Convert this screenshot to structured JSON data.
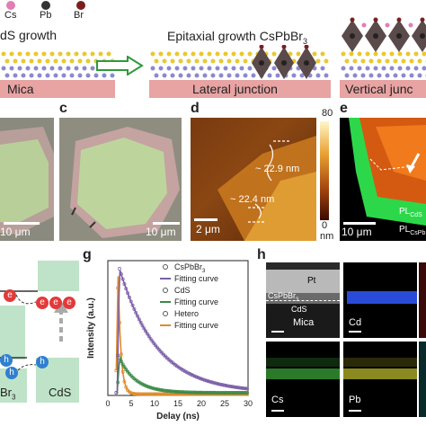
{
  "legend_atoms": {
    "cs": "Cs",
    "pb": "Pb",
    "br": "Br"
  },
  "top": {
    "cds_growth": "dS growth",
    "epitaxial": "Epitaxial growth CsPbBr",
    "epitaxial_sub": "3",
    "mica": "Mica",
    "lateral": "Lateral junction",
    "vertical": "Vertical junc"
  },
  "panel_labels": {
    "c": "c",
    "d": "d",
    "e": "e",
    "g": "g",
    "h": "h"
  },
  "scale": {
    "b": "10 μm",
    "c": "10 μm",
    "d": "2 μm",
    "e": "10 μm"
  },
  "afm": {
    "h1": "~ 22.9 nm",
    "h2": "~ 22.4 nm",
    "cb_top": "80",
    "cb_bottom": "0",
    "cb_unit": "nm"
  },
  "pl": {
    "cds": "PL",
    "cds_sub": "CdS",
    "cspb": "PL",
    "cspb_sub": "CsPb"
  },
  "band": {
    "e": "e",
    "h": "h",
    "left": "Br",
    "left_sub": "3",
    "right": "CdS"
  },
  "eds": {
    "pt": "Pt",
    "cspbbr": "CsPbBr",
    "cspbbr_sub": "3",
    "cds": "CdS",
    "mica": "Mica",
    "cd": "Cd",
    "cs": "Cs",
    "pb": "Pb"
  },
  "colors": {
    "cs": "#e07fb5",
    "pb": "#333333",
    "br": "#7a1f1f",
    "mica": "#e8a3a3",
    "cds_green": "#6fc27a"
  },
  "chart_data": {
    "type": "scatter",
    "title": "",
    "xlabel": "Delay (ns)",
    "ylabel": "Intensity (a.u.)",
    "xlim": [
      0,
      30
    ],
    "xticks": [
      0,
      5,
      10,
      15,
      20,
      25,
      30
    ],
    "legend": [
      "CsPbBr3",
      "Fitting curve",
      "CdS",
      "Fitting curve",
      "Hetero",
      "Fitting curve"
    ],
    "legend_display": [
      {
        "t": "CsPbBr",
        "sub": "3"
      },
      {
        "t": "Fitting curve"
      },
      {
        "t": "CdS"
      },
      {
        "t": "Fitting curve"
      },
      {
        "t": "Hetero"
      },
      {
        "t": "Fitting curve"
      }
    ],
    "series": [
      {
        "name": "CsPbBr3",
        "peak_x": 2.5,
        "tau": 8.0,
        "color": "#7b5ea7"
      },
      {
        "name": "CdS",
        "peak_x": 2.5,
        "tau": 3.5,
        "color": "#3a8a46",
        "amp": 0.28
      },
      {
        "name": "Hetero",
        "peak_x": 2.2,
        "tau": 0.6,
        "color": "#e08a2b",
        "amp": 0.95
      }
    ]
  }
}
